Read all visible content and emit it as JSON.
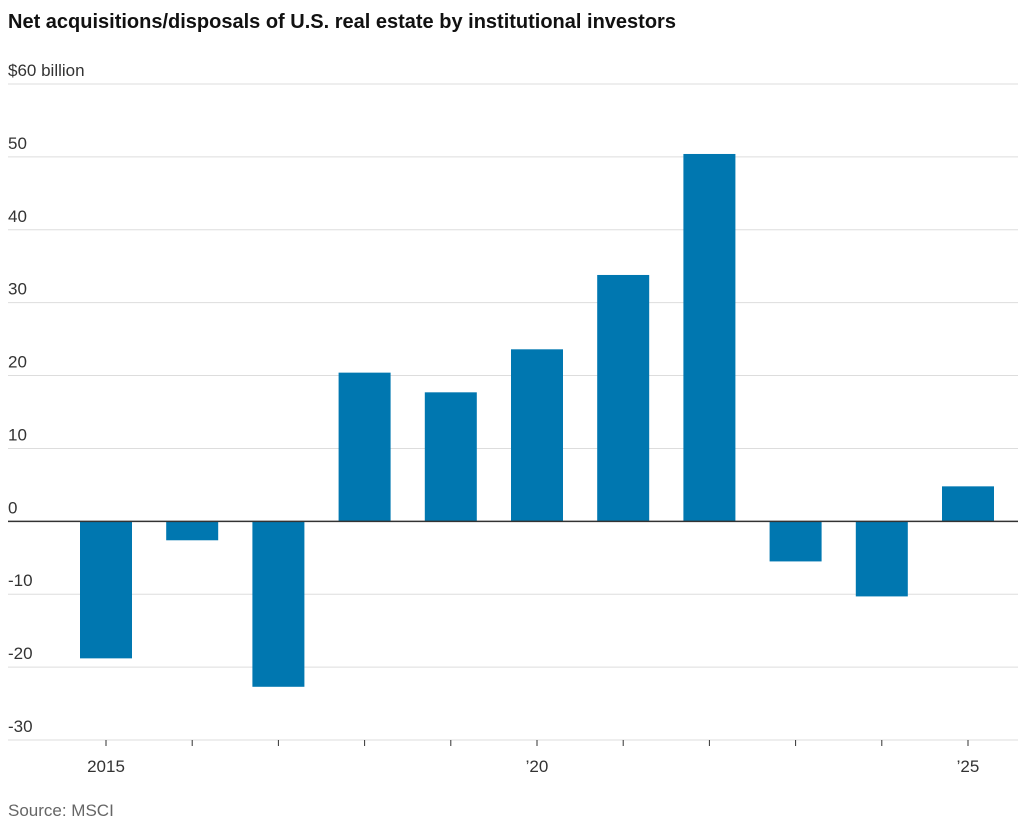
{
  "chart_data": {
    "type": "bar",
    "title": "Net acquisitions/disposals of U.S. real estate by institutional investors",
    "source": "Source: MSCI",
    "categories": [
      "2015",
      null,
      null,
      null,
      null,
      "’20",
      null,
      null,
      null,
      null,
      "’25"
    ],
    "values": [
      -18.8,
      -2.6,
      -22.7,
      20.4,
      17.7,
      23.6,
      33.8,
      50.4,
      -5.5,
      -10.3,
      4.8
    ],
    "color": "#0077b0",
    "ylim": [
      -30,
      60
    ],
    "yticks": [
      -30,
      -20,
      -10,
      0,
      10,
      20,
      30,
      40,
      50,
      {
        "value": 60,
        "label": "$60 billion"
      }
    ],
    "grid": true
  }
}
